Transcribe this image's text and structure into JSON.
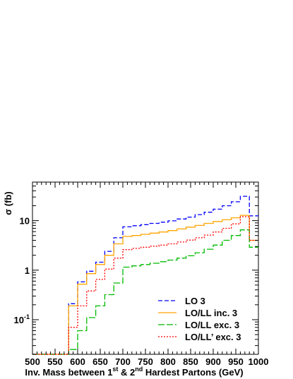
{
  "chart_data": {
    "type": "line",
    "step": true,
    "xlabel_parts": {
      "pre": "Inv. Mass between 1",
      "sup1": "st",
      "mid": " & 2",
      "sup2": "nd",
      "post": " Hardest Partons (GeV)"
    },
    "ylabel": "σ (fb)",
    "xlim": [
      500,
      1000
    ],
    "ylim_log": [
      0.02,
      60
    ],
    "yscale": "log",
    "x_ticks": [
      500,
      550,
      600,
      650,
      700,
      750,
      800,
      850,
      900,
      950,
      1000
    ],
    "y_ticks": [
      {
        "value": 10,
        "base": "10",
        "exp": ""
      },
      {
        "value": 1,
        "base": "1",
        "exp": ""
      },
      {
        "value": 0.1,
        "base": "10",
        "exp": "-1"
      }
    ],
    "bin_edges": [
      500,
      520,
      540,
      560,
      580,
      600,
      620,
      640,
      660,
      680,
      700,
      720,
      740,
      760,
      780,
      800,
      820,
      840,
      860,
      880,
      900,
      920,
      940,
      960,
      980,
      1000
    ],
    "legend_position": "bottom-right",
    "series": [
      {
        "name": "LO 3",
        "color": "#0000ff",
        "dash": "6,3",
        "values": [
          0.02,
          0.02,
          0.02,
          0.02,
          0.21,
          0.58,
          0.95,
          1.45,
          2.4,
          4.5,
          7.5,
          7.9,
          8.3,
          8.8,
          9.3,
          9.9,
          10.8,
          11.8,
          13.2,
          14.8,
          17.0,
          20.0,
          24.0,
          31.0,
          12.5
        ]
      },
      {
        "name": "LO/LL inc. 3",
        "color": "#ffa500",
        "dash": "",
        "values": [
          0.02,
          0.02,
          0.02,
          0.02,
          0.19,
          0.52,
          0.85,
          1.3,
          2.0,
          3.4,
          4.8,
          5.0,
          5.3,
          5.6,
          5.9,
          6.3,
          6.8,
          7.4,
          8.0,
          8.8,
          9.6,
          10.4,
          11.4,
          12.8,
          4.0
        ]
      },
      {
        "name": "LO/LL exc. 3",
        "color": "#00bb00",
        "dash": "9,3",
        "values": [
          0.02,
          0.02,
          0.02,
          0.02,
          0.025,
          0.06,
          0.11,
          0.19,
          0.32,
          0.55,
          1.15,
          1.22,
          1.3,
          1.38,
          1.48,
          1.6,
          1.75,
          1.95,
          2.25,
          2.65,
          3.2,
          4.0,
          5.0,
          6.5,
          2.9
        ]
      },
      {
        "name": "LO/LL’ exc. 3",
        "color": "#ff0000",
        "dash": "2,2",
        "values": [
          0.02,
          0.02,
          0.02,
          0.02,
          0.07,
          0.19,
          0.38,
          0.65,
          1.05,
          1.75,
          2.6,
          2.75,
          2.9,
          3.05,
          3.2,
          3.4,
          3.7,
          4.05,
          4.5,
          5.1,
          5.9,
          7.0,
          8.6,
          12.0,
          4.0
        ]
      }
    ]
  }
}
